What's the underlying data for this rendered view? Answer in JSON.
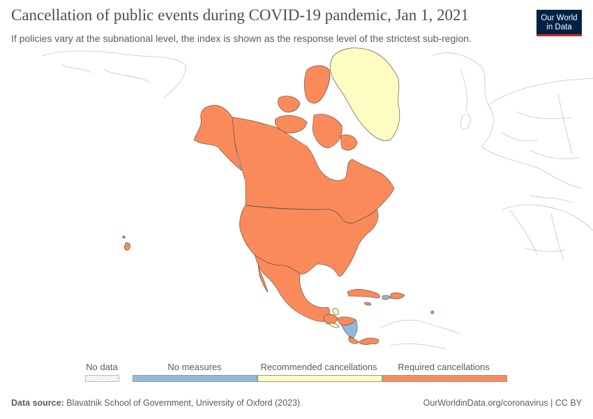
{
  "header": {
    "title": "Cancellation of public events during COVID-19 pandemic, Jan 1, 2021",
    "subtitle": "If policies vary at the subnational level, the index is shown as the response level of the strictest sub-region.",
    "logo_line1": "Our World",
    "logo_line2": "in Data"
  },
  "colors": {
    "no_measures": "#8fbbd9",
    "recommended": "#fefcc2",
    "required": "#fb8a5b",
    "no_data": "#f2f2f2",
    "border": "#6a5546",
    "other_land": "#c4c4c4"
  },
  "legend": {
    "no_data": "No data",
    "items": [
      {
        "label": "No measures",
        "color": "#8fbbd9"
      },
      {
        "label": "Recommended cancellations",
        "color": "#fefcc2"
      },
      {
        "label": "Required cancellations",
        "color": "#fb8a5b"
      }
    ]
  },
  "regions": {
    "greenland": "Recommended cancellations",
    "canada": "Required cancellations",
    "united_states": "Required cancellations",
    "mexico": "Required cancellations",
    "guatemala": "Required cancellations",
    "belize": "Recommended cancellations",
    "el_salvador": "Recommended cancellations",
    "honduras": "Required cancellations",
    "nicaragua": "No measures",
    "costa_rica": "Required cancellations",
    "panama": "Required cancellations",
    "cuba": "Required cancellations",
    "haiti": "No measures",
    "dominican_republic": "Required cancellations",
    "jamaica": "Required cancellations"
  },
  "footer": {
    "source_label": "Data source:",
    "source_text": "Blavatnik School of Government, University of Oxford (2023)",
    "right": "OurWorldinData.org/coronavirus | CC BY"
  }
}
